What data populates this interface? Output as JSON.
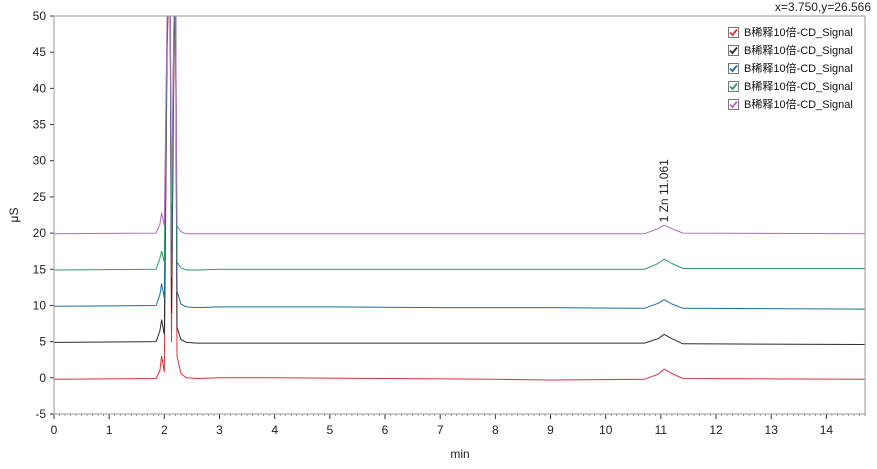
{
  "coordinate_readout": "x=3.750,y=26.566",
  "annotation": "1 Zn 11.061",
  "colors": {
    "frame": "#9a9a9a",
    "background": "#ffffff"
  },
  "legend": [
    {
      "label": "B稀释10倍-CD_Signal",
      "color": "#d9333a",
      "checked": true
    },
    {
      "label": "B稀释10倍-CD_Signal",
      "color": "#2b2b2b",
      "checked": true
    },
    {
      "label": "B稀释10倍-CD_Signal",
      "color": "#1f6ea0",
      "checked": true
    },
    {
      "label": "B稀释10倍-CD_Signal",
      "color": "#2e9a62",
      "checked": true
    },
    {
      "label": "B稀释10倍-CD_Signal",
      "color": "#a86ec0",
      "checked": true
    }
  ],
  "chart_data": {
    "type": "line",
    "xlabel": "min",
    "ylabel": "μS",
    "xlim": [
      0,
      14.7
    ],
    "ylim": [
      -5,
      50
    ],
    "xticks": [
      0,
      1,
      2,
      3,
      4,
      5,
      6,
      7,
      8,
      9,
      10,
      11,
      12,
      13,
      14
    ],
    "yticks": [
      -5,
      0,
      5,
      10,
      15,
      20,
      25,
      30,
      35,
      40,
      45,
      50
    ],
    "grid": false,
    "legend_position": "top-right",
    "annotation": {
      "text": "1 Zn 11.061",
      "x": 11.061,
      "y": 21.2
    },
    "series": [
      {
        "baseline": 0,
        "color": "#d9333a",
        "points": [
          [
            0,
            -0.2
          ],
          [
            1.85,
            -0.1
          ],
          [
            1.92,
            1.0
          ],
          [
            1.95,
            3.0
          ],
          [
            2.0,
            0.8
          ],
          [
            2.05,
            45
          ],
          [
            2.1,
            60
          ],
          [
            2.13,
            5
          ],
          [
            2.17,
            40
          ],
          [
            2.2,
            57
          ],
          [
            2.23,
            3
          ],
          [
            2.3,
            0.6
          ],
          [
            2.4,
            0.0
          ],
          [
            2.6,
            -0.1
          ],
          [
            3.0,
            0.0
          ],
          [
            4.0,
            0.0
          ],
          [
            6.0,
            -0.1
          ],
          [
            8.0,
            -0.2
          ],
          [
            9.0,
            -0.3
          ],
          [
            10.7,
            -0.2
          ],
          [
            10.95,
            0.5
          ],
          [
            11.06,
            1.2
          ],
          [
            11.2,
            0.6
          ],
          [
            11.4,
            -0.1
          ],
          [
            14.7,
            -0.2
          ]
        ]
      },
      {
        "baseline": 5,
        "color": "#2b2b2b",
        "points": [
          [
            0,
            4.9
          ],
          [
            1.85,
            5.0
          ],
          [
            1.92,
            6.5
          ],
          [
            1.95,
            8.0
          ],
          [
            2.0,
            6.0
          ],
          [
            2.05,
            47
          ],
          [
            2.1,
            60
          ],
          [
            2.13,
            9
          ],
          [
            2.17,
            43
          ],
          [
            2.2,
            57
          ],
          [
            2.23,
            7
          ],
          [
            2.3,
            5.3
          ],
          [
            2.4,
            4.9
          ],
          [
            2.6,
            4.8
          ],
          [
            3.0,
            4.8
          ],
          [
            5.0,
            4.8
          ],
          [
            7.0,
            4.8
          ],
          [
            9.0,
            4.8
          ],
          [
            10.7,
            4.8
          ],
          [
            10.95,
            5.4
          ],
          [
            11.06,
            6.0
          ],
          [
            11.2,
            5.4
          ],
          [
            11.4,
            4.7
          ],
          [
            14.7,
            4.6
          ]
        ]
      },
      {
        "baseline": 10,
        "color": "#1f6ea0",
        "points": [
          [
            0,
            9.9
          ],
          [
            1.85,
            10.0
          ],
          [
            1.92,
            11.5
          ],
          [
            1.95,
            13.0
          ],
          [
            2.0,
            11.0
          ],
          [
            2.05,
            48
          ],
          [
            2.1,
            60
          ],
          [
            2.13,
            14
          ],
          [
            2.17,
            45
          ],
          [
            2.2,
            57
          ],
          [
            2.23,
            12
          ],
          [
            2.3,
            10.2
          ],
          [
            2.4,
            9.8
          ],
          [
            2.6,
            9.7
          ],
          [
            3.0,
            9.8
          ],
          [
            5.0,
            9.8
          ],
          [
            7.0,
            9.7
          ],
          [
            9.0,
            9.7
          ],
          [
            10.7,
            9.6
          ],
          [
            10.95,
            10.3
          ],
          [
            11.06,
            10.8
          ],
          [
            11.2,
            10.2
          ],
          [
            11.4,
            9.6
          ],
          [
            14.7,
            9.5
          ]
        ]
      },
      {
        "baseline": 15,
        "color": "#2e9a62",
        "points": [
          [
            0,
            14.9
          ],
          [
            1.85,
            15.0
          ],
          [
            1.92,
            16.5
          ],
          [
            1.95,
            17.5
          ],
          [
            2.0,
            16.0
          ],
          [
            2.05,
            49
          ],
          [
            2.1,
            60
          ],
          [
            2.13,
            19
          ],
          [
            2.17,
            47
          ],
          [
            2.2,
            57
          ],
          [
            2.23,
            16
          ],
          [
            2.3,
            15.2
          ],
          [
            2.4,
            14.9
          ],
          [
            2.6,
            14.9
          ],
          [
            3.0,
            15.0
          ],
          [
            5.0,
            15.0
          ],
          [
            7.0,
            15.0
          ],
          [
            9.0,
            15.0
          ],
          [
            10.7,
            15.0
          ],
          [
            10.95,
            15.8
          ],
          [
            11.06,
            16.4
          ],
          [
            11.2,
            15.8
          ],
          [
            11.4,
            15.1
          ],
          [
            14.7,
            15.1
          ]
        ]
      },
      {
        "baseline": 20,
        "color": "#a86ec0",
        "points": [
          [
            0,
            19.9
          ],
          [
            1.85,
            20.0
          ],
          [
            1.92,
            21.2
          ],
          [
            1.95,
            22.8
          ],
          [
            2.0,
            21.0
          ],
          [
            2.05,
            50
          ],
          [
            2.1,
            60
          ],
          [
            2.13,
            24
          ],
          [
            2.17,
            48
          ],
          [
            2.2,
            57
          ],
          [
            2.23,
            21
          ],
          [
            2.3,
            20.2
          ],
          [
            2.4,
            19.9
          ],
          [
            2.6,
            19.9
          ],
          [
            3.0,
            19.9
          ],
          [
            5.0,
            19.9
          ],
          [
            7.0,
            19.9
          ],
          [
            9.0,
            19.9
          ],
          [
            10.7,
            19.9
          ],
          [
            10.95,
            20.6
          ],
          [
            11.06,
            21.1
          ],
          [
            11.2,
            20.6
          ],
          [
            11.4,
            20.0
          ],
          [
            14.7,
            19.9
          ]
        ]
      }
    ]
  }
}
